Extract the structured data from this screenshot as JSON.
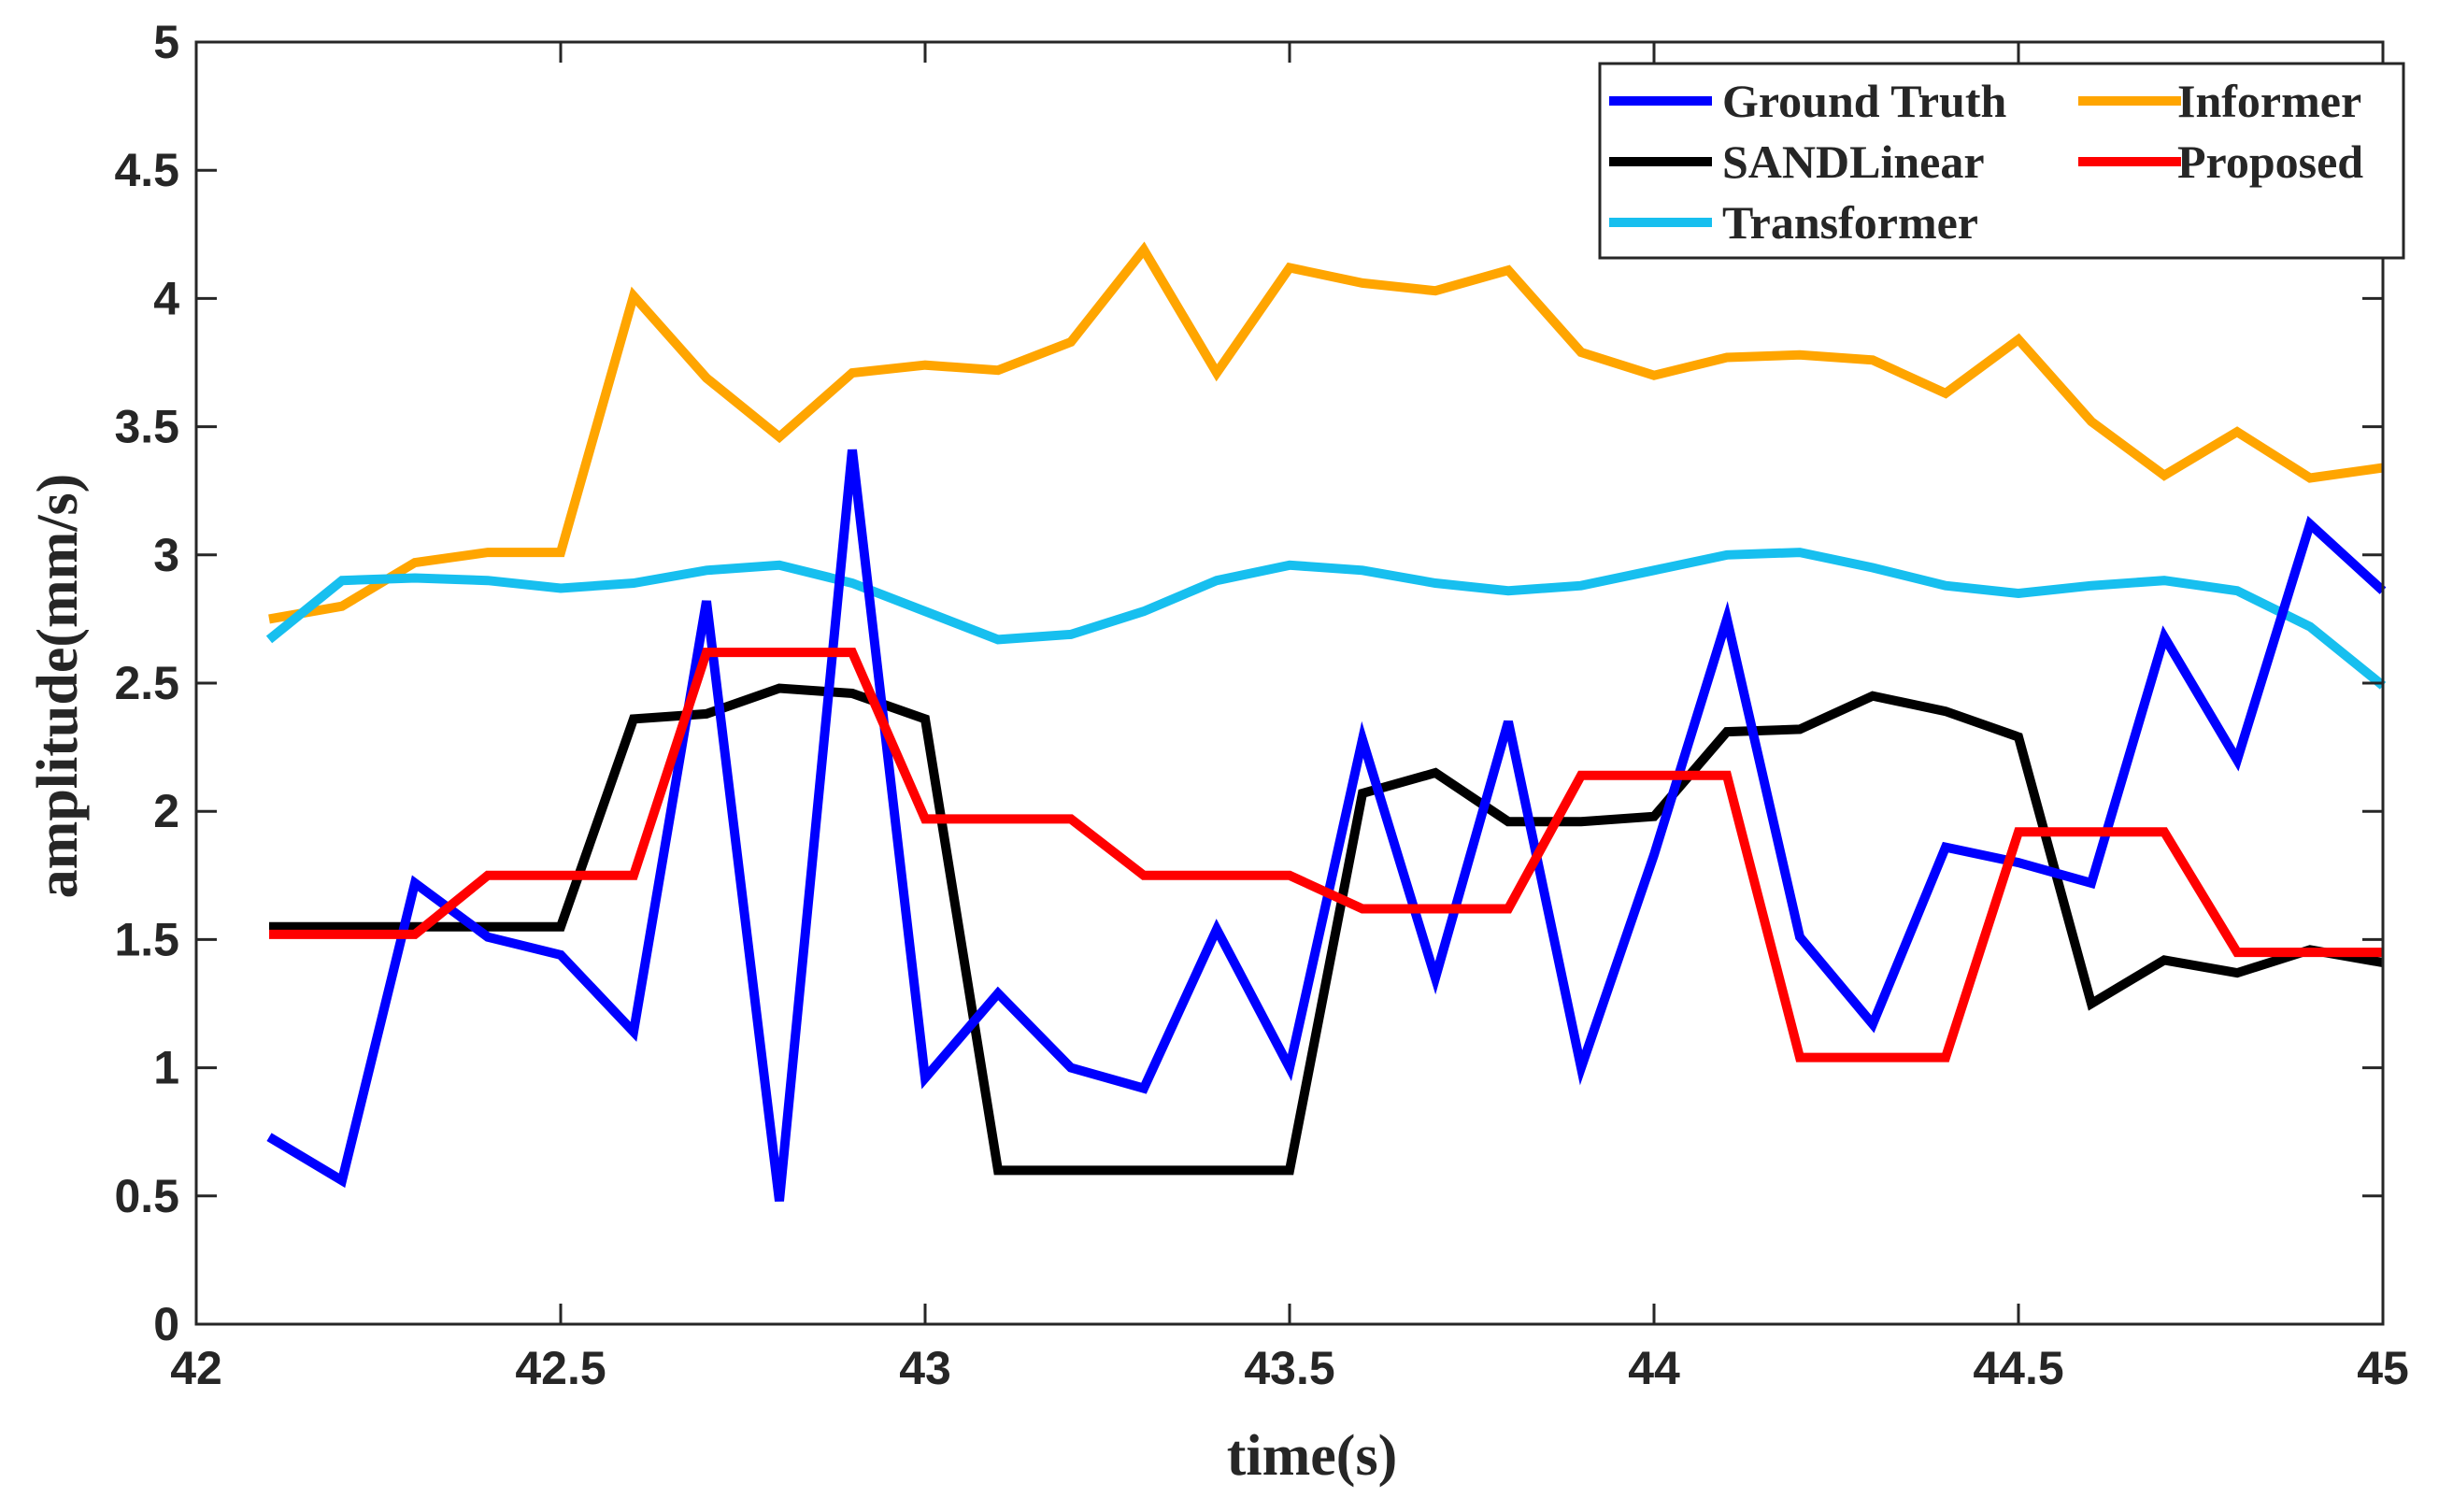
{
  "chart_data": {
    "type": "line",
    "title": "",
    "xlabel": "time(s)",
    "ylabel": "amplitude(mm/s)",
    "xlim": [
      42,
      45
    ],
    "ylim": [
      0,
      5
    ],
    "xticks": [
      42,
      42.5,
      43,
      43.5,
      44,
      44.5,
      45
    ],
    "xtick_labels": [
      "42",
      "42.5",
      "43",
      "43.5",
      "44",
      "44.5",
      "45"
    ],
    "yticks": [
      0,
      0.5,
      1,
      1.5,
      2,
      2.5,
      3,
      3.5,
      4,
      4.5,
      5
    ],
    "ytick_labels": [
      "0",
      "0.5",
      "1",
      "1.5",
      "2",
      "2.5",
      "3",
      "3.5",
      "4",
      "4.5",
      "5"
    ],
    "grid": false,
    "legend_position": "top-right",
    "x": [
      42.1,
      42.2,
      42.3,
      42.4,
      42.5,
      42.6,
      42.7,
      42.8,
      42.9,
      43.0,
      43.1,
      43.2,
      43.3,
      43.4,
      43.5,
      43.6,
      43.7,
      43.8,
      43.9,
      44.0,
      44.1,
      44.2,
      44.3,
      44.4,
      44.5,
      44.6,
      44.7,
      44.8,
      44.9,
      45.0
    ],
    "series": [
      {
        "name": "Ground Truth",
        "color": "#0000ff",
        "values": [
          0.73,
          0.56,
          1.72,
          1.51,
          1.44,
          1.14,
          2.82,
          0.48,
          3.41,
          0.96,
          1.29,
          1.0,
          0.92,
          1.54,
          1.0,
          2.28,
          1.35,
          2.35,
          1.0,
          1.83,
          2.75,
          1.51,
          1.17,
          1.86,
          1.8,
          1.72,
          2.68,
          2.2,
          3.12,
          2.86
        ]
      },
      {
        "name": "Informer",
        "color": "#ffa500",
        "values": [
          2.75,
          2.8,
          2.97,
          3.01,
          3.01,
          4.01,
          3.69,
          3.46,
          3.71,
          3.74,
          3.72,
          3.83,
          4.19,
          3.71,
          4.12,
          4.06,
          4.03,
          4.11,
          3.79,
          3.7,
          3.77,
          3.78,
          3.76,
          3.63,
          3.84,
          3.52,
          3.31,
          3.48,
          3.3,
          3.34
        ]
      },
      {
        "name": "SANDLinear",
        "color": "#000000",
        "values": [
          1.55,
          1.55,
          1.55,
          1.55,
          1.55,
          2.36,
          2.38,
          2.48,
          2.46,
          2.36,
          0.6,
          0.6,
          0.6,
          0.6,
          0.6,
          2.07,
          2.15,
          1.96,
          1.96,
          1.98,
          2.31,
          2.32,
          2.45,
          2.39,
          2.29,
          1.25,
          1.42,
          1.37,
          1.46,
          1.41
        ]
      },
      {
        "name": "Proposed",
        "color": "#ff0000",
        "values": [
          1.52,
          1.52,
          1.52,
          1.75,
          1.75,
          1.75,
          2.62,
          2.62,
          2.62,
          1.97,
          1.97,
          1.97,
          1.75,
          1.75,
          1.75,
          1.62,
          1.62,
          1.62,
          2.14,
          2.14,
          2.14,
          1.04,
          1.04,
          1.04,
          1.92,
          1.92,
          1.92,
          1.45,
          1.45,
          1.45
        ]
      },
      {
        "name": "Transformer",
        "color": "#17bfef",
        "values": [
          2.67,
          2.9,
          2.91,
          2.9,
          2.87,
          2.89,
          2.94,
          2.96,
          2.89,
          2.78,
          2.67,
          2.69,
          2.78,
          2.9,
          2.96,
          2.94,
          2.89,
          2.86,
          2.88,
          2.94,
          3.0,
          3.01,
          2.95,
          2.88,
          2.85,
          2.88,
          2.9,
          2.86,
          2.72,
          2.49
        ]
      }
    ],
    "legend": [
      {
        "label": "Ground Truth",
        "color": "#0000ff"
      },
      {
        "label": "Informer",
        "color": "#ffa500"
      },
      {
        "label": "SANDLinear",
        "color": "#000000"
      },
      {
        "label": "Proposed",
        "color": "#ff0000"
      },
      {
        "label": "Transformer",
        "color": "#17bfef"
      }
    ]
  }
}
